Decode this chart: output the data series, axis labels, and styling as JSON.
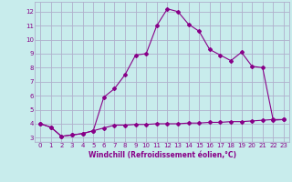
{
  "xlabel": "Windchill (Refroidissement éolien,°C)",
  "background_color": "#c8ecec",
  "grid_color": "#b0b0cc",
  "line_color": "#880088",
  "xlim": [
    -0.5,
    23.5
  ],
  "ylim": [
    2.7,
    12.7
  ],
  "yticks": [
    3,
    4,
    5,
    6,
    7,
    8,
    9,
    10,
    11,
    12
  ],
  "xticks": [
    0,
    1,
    2,
    3,
    4,
    5,
    6,
    7,
    8,
    9,
    10,
    11,
    12,
    13,
    14,
    15,
    16,
    17,
    18,
    19,
    20,
    21,
    22,
    23
  ],
  "series1_x": [
    0,
    1,
    2,
    3,
    4,
    5,
    6,
    7,
    8,
    9,
    10,
    11,
    12,
    13,
    14,
    15,
    16,
    17,
    18,
    19,
    20,
    21,
    22,
    23
  ],
  "series1_y": [
    4.0,
    3.75,
    3.1,
    3.2,
    3.3,
    3.5,
    3.7,
    3.9,
    3.9,
    3.95,
    3.95,
    4.0,
    4.0,
    4.0,
    4.05,
    4.05,
    4.1,
    4.1,
    4.15,
    4.15,
    4.2,
    4.25,
    4.3,
    4.3
  ],
  "series2_x": [
    0,
    1,
    2,
    3,
    4,
    5,
    6,
    7,
    8,
    9,
    10,
    11,
    12,
    13,
    14,
    15,
    16,
    17,
    18,
    19,
    20,
    21,
    22,
    23
  ],
  "series2_y": [
    4.0,
    3.75,
    3.1,
    3.2,
    3.3,
    3.5,
    5.9,
    6.5,
    7.5,
    8.9,
    9.0,
    11.0,
    12.2,
    12.0,
    11.1,
    10.6,
    9.3,
    8.9,
    8.5,
    9.1,
    8.1,
    8.0,
    4.25,
    4.3
  ]
}
